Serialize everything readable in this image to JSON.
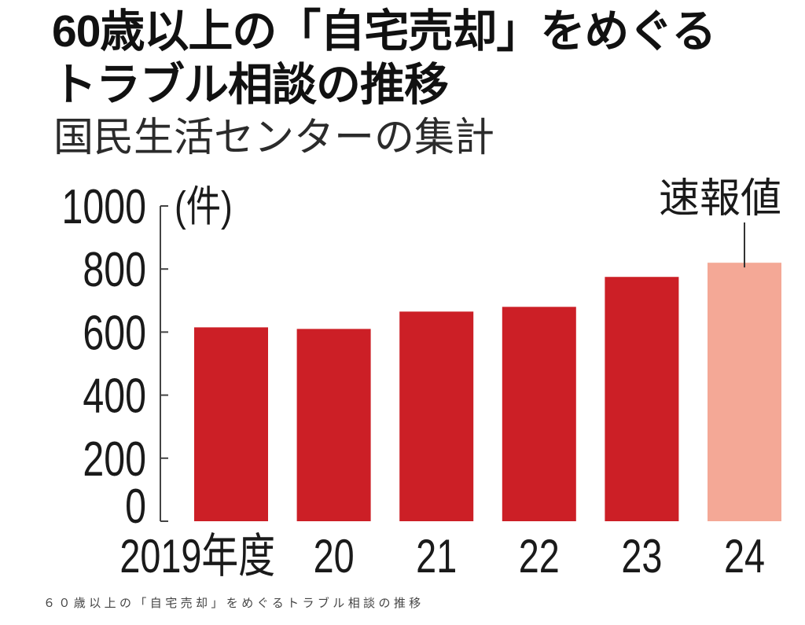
{
  "caption": "６０歳以上の「自宅売却」をめぐるトラブル相談の推移",
  "colors": {
    "background": "#ffffff",
    "bar": "#cc1f26",
    "bar_preliminary": "#f4a896",
    "axis": "#444444",
    "text": "#1a1a1a",
    "subtitle": "#2b2b2b",
    "caption": "#444444"
  },
  "chart_data": {
    "type": "bar",
    "title_lines": [
      "60歳以上の「自宅売却」をめぐる",
      "トラブル相談の推移"
    ],
    "subtitle": "国民生活センターの集計",
    "unit": "(件)",
    "categories": [
      "2019年度",
      "20",
      "21",
      "22",
      "23",
      "24"
    ],
    "values": [
      615,
      610,
      665,
      680,
      775,
      820
    ],
    "preliminary": [
      false,
      false,
      false,
      false,
      false,
      true
    ],
    "annotations": [
      {
        "text": "速報値",
        "category": "24"
      }
    ],
    "ylim": [
      0,
      1000
    ],
    "yticks": [
      0,
      200,
      400,
      600,
      800,
      1000
    ],
    "grid": false
  }
}
